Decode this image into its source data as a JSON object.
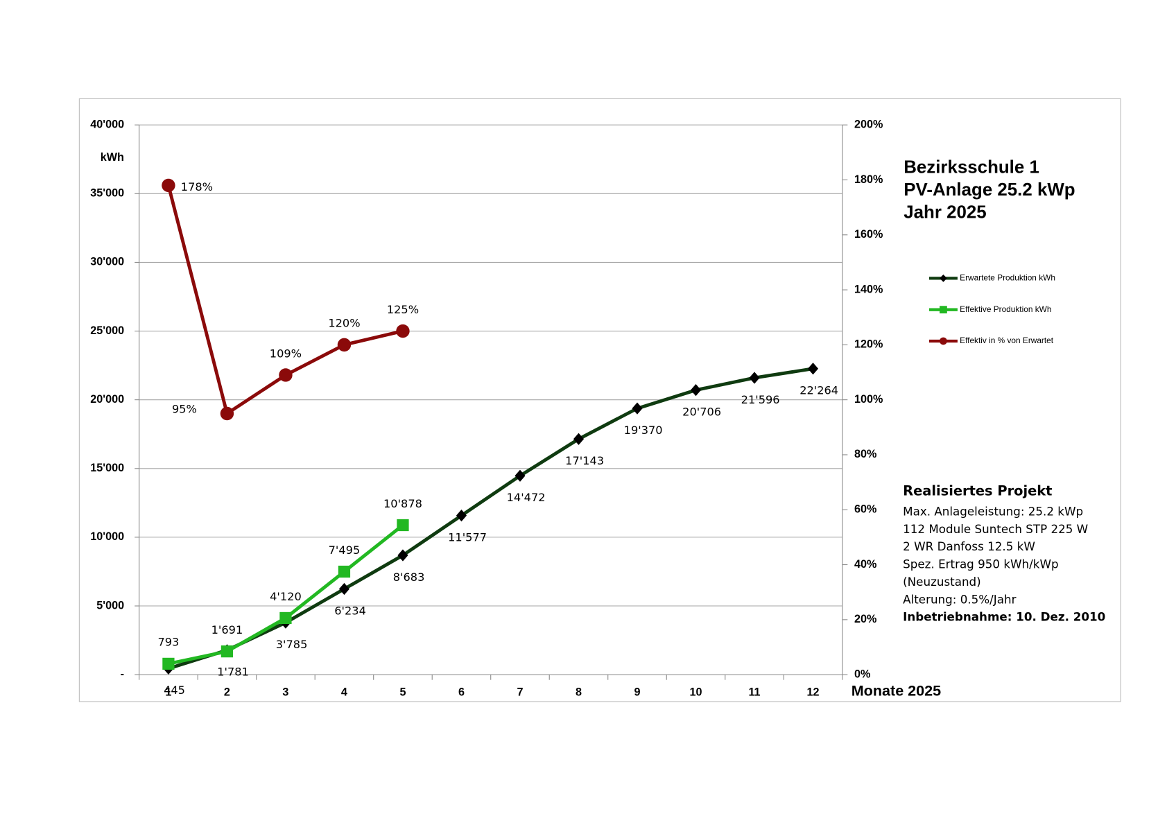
{
  "chart_data": {
    "type": "line",
    "title_lines": [
      "Bezirksschule 1",
      "PV-Anlage 25.2 kWp",
      "Jahr 2025"
    ],
    "y_label": "kWh",
    "x_label": "Monate 2025",
    "categories": [
      "1",
      "2",
      "3",
      "4",
      "5",
      "6",
      "7",
      "8",
      "9",
      "10",
      "11",
      "12"
    ],
    "series": [
      {
        "name": "Erwartete Produktion kWh",
        "color": "#0f3b10",
        "marker": "diamond",
        "values": [
          445,
          1781,
          3785,
          6234,
          8683,
          11577,
          14472,
          17143,
          19370,
          20706,
          21596,
          22264
        ],
        "value_labels": [
          "445",
          "1'781",
          "3'785",
          "6'234",
          "8'683",
          "11'577",
          "14'472",
          "17'143",
          "19'370",
          "20'706",
          "21'596",
          "22'264"
        ]
      },
      {
        "name": "Effektive Produktion kWh",
        "color": "#22b822",
        "marker": "square",
        "values": [
          793,
          1691,
          4120,
          7495,
          10878,
          null,
          null,
          null,
          null,
          null,
          null,
          null
        ],
        "value_labels": [
          "793",
          "1'691",
          "4'120",
          "7'495",
          "10'878",
          null,
          null,
          null,
          null,
          null,
          null,
          null
        ]
      },
      {
        "name": "Effektiv in % von Erwartet",
        "color": "#8b0a0a",
        "marker": "circle",
        "axis": "y2",
        "values": [
          178,
          95,
          109,
          120,
          125,
          null,
          null,
          null,
          null,
          null,
          null,
          null
        ],
        "value_labels": [
          "178%",
          "95%",
          "109%",
          "120%",
          "125%",
          null,
          null,
          null,
          null,
          null,
          null,
          null
        ]
      }
    ],
    "ylim": [
      0,
      40000
    ],
    "yticks": [
      {
        "value": 0,
        "label": "-"
      },
      {
        "value": 5000,
        "label": "5'000"
      },
      {
        "value": 10000,
        "label": "10'000"
      },
      {
        "value": 15000,
        "label": "15'000"
      },
      {
        "value": 20000,
        "label": "20'000"
      },
      {
        "value": 25000,
        "label": "25'000"
      },
      {
        "value": 30000,
        "label": "30'000"
      },
      {
        "value": 35000,
        "label": "35'000"
      },
      {
        "value": 40000,
        "label": "40'000"
      }
    ],
    "y2lim": [
      0,
      200
    ],
    "y2ticks": [
      {
        "value": 0,
        "label": "0%"
      },
      {
        "value": 20,
        "label": "20%"
      },
      {
        "value": 40,
        "label": "40%"
      },
      {
        "value": 60,
        "label": "60%"
      },
      {
        "value": 80,
        "label": "80%"
      },
      {
        "value": 100,
        "label": "100%"
      },
      {
        "value": 120,
        "label": "120%"
      },
      {
        "value": 140,
        "label": "140%"
      },
      {
        "value": 160,
        "label": "160%"
      },
      {
        "value": 180,
        "label": "180%"
      },
      {
        "value": 200,
        "label": "200%"
      }
    ],
    "grid": true,
    "legend": "right",
    "info": {
      "heading": "Realisiertes Projekt",
      "lines": [
        "Max. Anlageleistung: 25.2 kWp",
        "112 Module Suntech STP 225 W",
        "2 WR Danfoss 12.5 kW",
        "Spez. Ertrag 950 kWh/kWp",
        "(Neuzustand)",
        "Alterung: 0.5%/Jahr"
      ],
      "footer": "Inbetriebnahme: 10. Dez. 2010"
    }
  }
}
